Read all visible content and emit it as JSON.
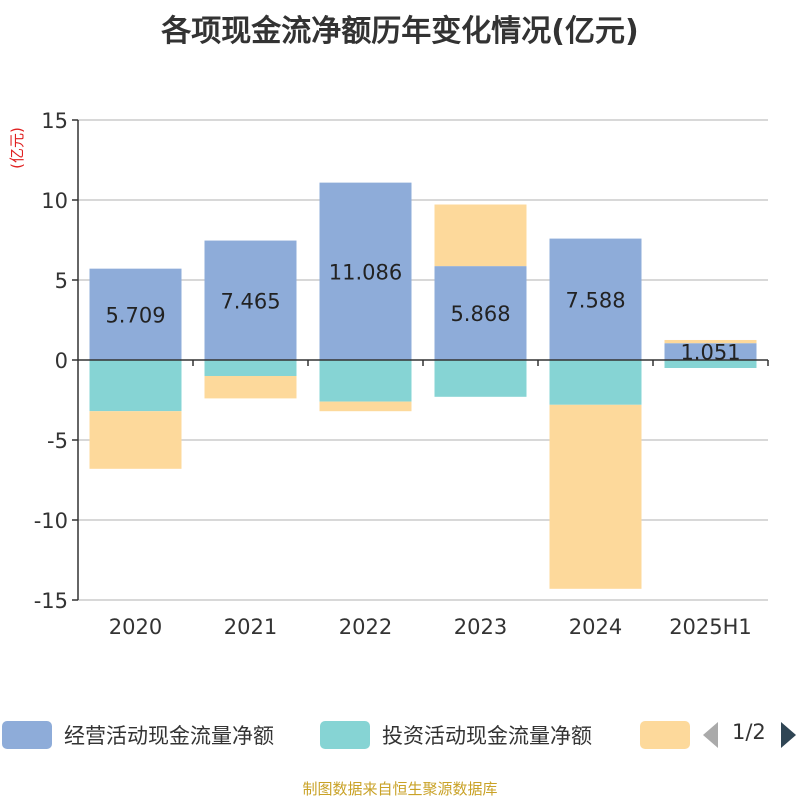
{
  "chart_data": {
    "type": "bar",
    "stacked": true,
    "title": "各项现金流净额历年变化情况(亿元)",
    "ylabel": "(亿元)",
    "xlabel": "",
    "categories": [
      "2020",
      "2021",
      "2022",
      "2023",
      "2024",
      "2025H1"
    ],
    "ylim": [
      -15,
      15
    ],
    "yticks": [
      15,
      10,
      5,
      0,
      -5,
      -10,
      -15
    ],
    "grid": true,
    "series": [
      {
        "name": "经营活动现金流量净额",
        "color": "#8eacd9",
        "values": [
          5.709,
          7.465,
          11.086,
          5.868,
          7.588,
          1.051
        ],
        "labels": [
          "5.709",
          "7.465",
          "11.086",
          "5.868",
          "7.588",
          "1.051"
        ]
      },
      {
        "name": "投资活动现金流量净额",
        "color": "#86d4d4",
        "values": [
          -3.2,
          -1.0,
          -2.6,
          -2.3,
          -2.8,
          -0.5
        ]
      },
      {
        "name": "",
        "color": "#fdd99b",
        "values": [
          -3.6,
          -1.4,
          -0.6,
          3.85,
          -11.5,
          0.2
        ]
      }
    ],
    "legend_position": "bottom"
  },
  "legend": {
    "page": "1/2"
  },
  "source": "制图数据来自恒生聚源数据库"
}
